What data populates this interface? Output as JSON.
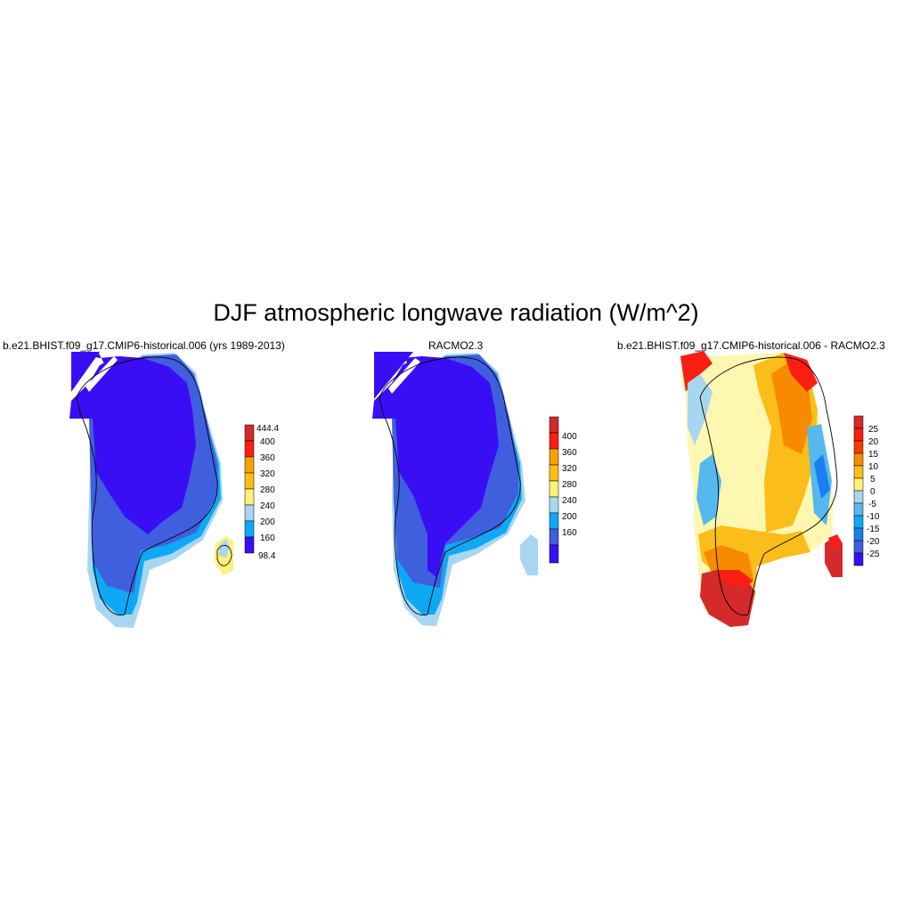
{
  "title": "DJF atmospheric longwave radiation (W/m^2)",
  "colors": {
    "c98": "#3a0ef5",
    "c160": "#3f5fde",
    "c200": "#0fa8f5",
    "c240": "#a8d6f0",
    "c280": "#fef07a",
    "c320": "#fbbd1a",
    "c360": "#f8a000",
    "c400": "#fb1e12",
    "c444": "#d42a2a",
    "d_m25": "#3a0ef5",
    "d_m20": "#3f5fde",
    "d_m15": "#1a7ff0",
    "d_m10": "#0fa8f5",
    "d_m5": "#55b8ee",
    "d_0": "#a8d6f0",
    "d_5": "#fef7b0",
    "d_10": "#fede50",
    "d_15": "#fbbd1a",
    "d_20": "#f88a00",
    "d_25": "#fb1e12",
    "d_top": "#d42a2a"
  },
  "panels": [
    {
      "title": "b.e21.BHIST.f09_g17.CMIP6-historical.006 (yrs 1989-2013)",
      "colorbar": {
        "labels": [
          "444.4",
          "400",
          "360",
          "320",
          "280",
          "240",
          "200",
          "160",
          "98.4"
        ]
      }
    },
    {
      "title": "RACMO2.3",
      "colorbar": {
        "labels": [
          "400",
          "360",
          "320",
          "280",
          "240",
          "200",
          "160"
        ]
      }
    },
    {
      "title": "b.e21.BHIST.f09_g17.CMIP6-historical.006 - RACMO2.3",
      "colorbar": {
        "labels": [
          "25",
          "20",
          "15",
          "10",
          "5",
          "0",
          "-5",
          "-10",
          "-15",
          "-20",
          "-25"
        ]
      }
    }
  ]
}
